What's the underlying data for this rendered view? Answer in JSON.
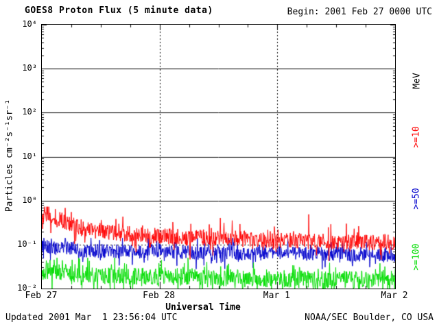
{
  "header": {
    "begin": "Begin: 2001 Feb 27 0000 UTC"
  },
  "footer": {
    "updated": "Updated 2001 Mar  1 23:56:04 UTC",
    "source": "NOAA/SEC Boulder, CO USA"
  },
  "chart_data": {
    "type": "line",
    "title": "GOES8 Proton Flux (5 minute data)",
    "xlabel": "Universal Time",
    "ylabel": "Particles cm⁻²s⁻¹sr⁻¹",
    "right_axis_label": "MeV",
    "x_range_hours": [
      0,
      72
    ],
    "x_tick_hours": [
      0,
      24,
      48,
      72
    ],
    "x_tick_labels": [
      "Feb 27",
      "Feb 28",
      "Mar 1",
      "Mar 2"
    ],
    "x_minor_tick_step_hours": 6,
    "y_log10_range": [
      -2,
      4
    ],
    "y_tick_labels": [
      "10⁴",
      "10³",
      "10²",
      "10¹",
      "10⁰",
      "10⁻¹",
      "10⁻²"
    ],
    "grid": {
      "solid_decades": [
        3,
        2,
        1,
        0
      ],
      "dashed_decades": [
        -1
      ],
      "dashed_day_lines_hours": [
        24,
        48
      ]
    },
    "legend_position": "right",
    "points_per_series": 864,
    "draw_order": [
      1,
      2,
      0
    ],
    "series": [
      {
        "name": ">=10",
        "unit": "MeV",
        "color": "#ff0000",
        "seed": 227,
        "noise_dex": 0.18,
        "spike": true,
        "clamp_max_log10": -0.14,
        "anchors_hours": [
          0,
          1,
          3,
          6,
          10,
          16,
          24,
          32,
          40,
          48,
          56,
          64,
          72
        ],
        "anchors_log10_flux": [
          -0.4,
          -0.28,
          -0.38,
          -0.55,
          -0.68,
          -0.75,
          -0.8,
          -0.85,
          -0.85,
          -0.9,
          -0.92,
          -0.95,
          -0.95
        ]
      },
      {
        "name": ">=50",
        "unit": "MeV",
        "color": "#0000cc",
        "seed": 50,
        "noise_dex": 0.16,
        "spike": false,
        "clamp_max_log10": -0.85,
        "anchors_hours": [
          0,
          6,
          12,
          24,
          36,
          48,
          60,
          72
        ],
        "anchors_log10_flux": [
          -1.05,
          -1.1,
          -1.15,
          -1.15,
          -1.2,
          -1.2,
          -1.22,
          -1.25
        ]
      },
      {
        "name": ">=100",
        "unit": "MeV",
        "color": "#00dd00",
        "seed": 100,
        "noise_dex": 0.2,
        "spike": false,
        "clamp_max_log10": -1.3,
        "anchors_hours": [
          0,
          6,
          12,
          24,
          36,
          48,
          60,
          72
        ],
        "anchors_log10_flux": [
          -1.6,
          -1.65,
          -1.7,
          -1.72,
          -1.75,
          -1.78,
          -1.8,
          -1.8
        ]
      }
    ]
  }
}
